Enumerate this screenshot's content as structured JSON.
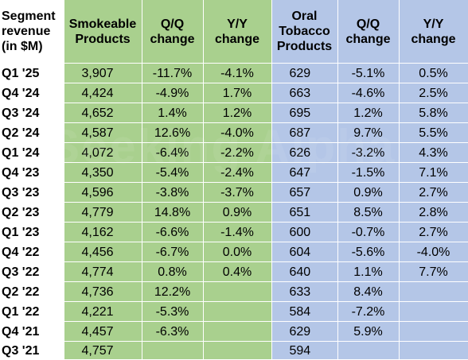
{
  "header": {
    "segment_label": [
      "Segment",
      "revenue",
      "(in $M)"
    ],
    "smokeable": [
      "Smokeable",
      "Products"
    ],
    "qq1": [
      "Q/Q",
      "change"
    ],
    "yy1": [
      "Y/Y",
      "change"
    ],
    "oral": [
      "Oral",
      "Tobacco",
      "Products"
    ],
    "qq2": [
      "Q/Q",
      "change"
    ],
    "yy2": [
      "Y/Y",
      "change"
    ]
  },
  "colors": {
    "green": "#a9d08e",
    "blue": "#b4c6e7"
  },
  "rows": [
    {
      "q": "Q1 '25",
      "s": "3,907",
      "sqq": "-11.7%",
      "syy": "-4.1%",
      "o": "629",
      "oqq": "-5.1%",
      "oyy": "0.5%"
    },
    {
      "q": "Q4 '24",
      "s": "4,424",
      "sqq": "-4.9%",
      "syy": "1.7%",
      "o": "663",
      "oqq": "-4.6%",
      "oyy": "2.5%"
    },
    {
      "q": "Q3 '24",
      "s": "4,652",
      "sqq": "1.4%",
      "syy": "1.2%",
      "o": "695",
      "oqq": "1.2%",
      "oyy": "5.8%"
    },
    {
      "q": "Q2 '24",
      "s": "4,587",
      "sqq": "12.6%",
      "syy": "-4.0%",
      "o": "687",
      "oqq": "9.7%",
      "oyy": "5.5%"
    },
    {
      "q": "Q1 '24",
      "s": "4,072",
      "sqq": "-6.4%",
      "syy": "-2.2%",
      "o": "626",
      "oqq": "-3.2%",
      "oyy": "4.3%"
    },
    {
      "q": "Q4 '23",
      "s": "4,350",
      "sqq": "-5.4%",
      "syy": "-2.4%",
      "o": "647",
      "oqq": "-1.5%",
      "oyy": "7.1%"
    },
    {
      "q": "Q3 '23",
      "s": "4,596",
      "sqq": "-3.8%",
      "syy": "-3.7%",
      "o": "657",
      "oqq": "0.9%",
      "oyy": "2.7%"
    },
    {
      "q": "Q2 '23",
      "s": "4,779",
      "sqq": "14.8%",
      "syy": "0.9%",
      "o": "651",
      "oqq": "8.5%",
      "oyy": "2.8%"
    },
    {
      "q": "Q1 '23",
      "s": "4,162",
      "sqq": "-6.6%",
      "syy": "-1.4%",
      "o": "600",
      "oqq": "-0.7%",
      "oyy": "2.7%"
    },
    {
      "q": "Q4 '22",
      "s": "4,456",
      "sqq": "-6.7%",
      "syy": "0.0%",
      "o": "604",
      "oqq": "-5.6%",
      "oyy": "-4.0%"
    },
    {
      "q": "Q3 '22",
      "s": "4,774",
      "sqq": "0.8%",
      "syy": "0.4%",
      "o": "640",
      "oqq": "1.1%",
      "oyy": "7.7%"
    },
    {
      "q": "Q2 '22",
      "s": "4,736",
      "sqq": "12.2%",
      "syy": "",
      "o": "633",
      "oqq": "8.4%",
      "oyy": ""
    },
    {
      "q": "Q1 '22",
      "s": "4,221",
      "sqq": "-5.3%",
      "syy": "",
      "o": "584",
      "oqq": "-7.2%",
      "oyy": ""
    },
    {
      "q": "Q4 '21",
      "s": "4,457",
      "sqq": "-6.3%",
      "syy": "",
      "o": "629",
      "oqq": "5.9%",
      "oyy": ""
    },
    {
      "q": "Q3 '21",
      "s": "4,757",
      "sqq": "",
      "syy": "",
      "o": "594",
      "oqq": "",
      "oyy": ""
    }
  ]
}
